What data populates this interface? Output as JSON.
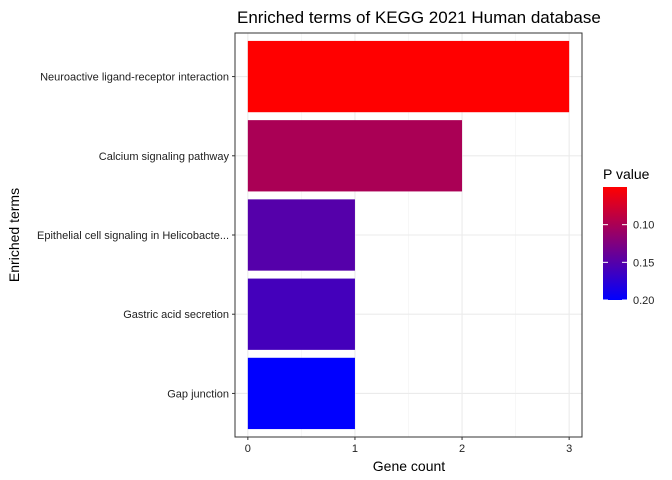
{
  "chart_data": {
    "type": "bar",
    "orientation": "horizontal",
    "title": "Enriched terms of KEGG 2021 Human database",
    "xlabel": "Gene count",
    "ylabel": "Enriched terms",
    "categories": [
      "Neuroactive ligand-receptor interaction",
      "Calcium signaling pathway",
      "Epithelial cell signaling in Helicobacte...",
      "Gastric acid secretion",
      "Gap junction"
    ],
    "values": [
      3,
      2,
      1,
      1,
      1
    ],
    "p_values": [
      0.05,
      0.1,
      0.15,
      0.16,
      0.2
    ],
    "xlim": [
      -0.12,
      3.12
    ],
    "xticks": [
      "0",
      "1",
      "2",
      "3"
    ],
    "grid": true,
    "legend": {
      "title": "P value",
      "placement": "right",
      "ticks": [
        "0.10",
        "0.15",
        "0.20"
      ],
      "range": [
        0.05,
        0.2
      ],
      "color_low_p": "#ff0000",
      "color_high_p": "#0000ff"
    }
  }
}
